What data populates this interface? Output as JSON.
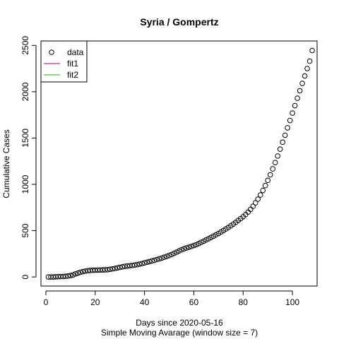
{
  "chart_data": {
    "type": "scatter",
    "title": "Syria / Gompertz",
    "xlabel": "Days since 2020-05-16",
    "xlabel2": "Simple Moving Avarage (window size = 7)",
    "ylabel": "Cumulative Cases",
    "xlim": [
      -2,
      110
    ],
    "ylim": [
      -98,
      2548
    ],
    "x_ticks": [
      0,
      20,
      40,
      60,
      80,
      100
    ],
    "y_ticks": [
      0,
      500,
      1000,
      1500,
      2000,
      2500
    ],
    "grid": false,
    "legend_position": "top-left",
    "legend": [
      {
        "label": "data",
        "kind": "circle",
        "color": "#000000"
      },
      {
        "label": "fit1",
        "kind": "line",
        "color": "#DF536B"
      },
      {
        "label": "fit2",
        "kind": "line",
        "color": "#61D04F"
      }
    ],
    "series": [
      {
        "name": "data",
        "marker": "open-circle",
        "color": "#000000",
        "x": [
          1,
          2,
          3,
          4,
          5,
          6,
          7,
          8,
          9,
          10,
          11,
          12,
          13,
          14,
          15,
          16,
          17,
          18,
          19,
          20,
          21,
          22,
          23,
          24,
          25,
          26,
          27,
          28,
          29,
          30,
          31,
          32,
          33,
          34,
          35,
          36,
          37,
          38,
          39,
          40,
          41,
          42,
          43,
          44,
          45,
          46,
          47,
          48,
          49,
          50,
          51,
          52,
          53,
          54,
          55,
          56,
          57,
          58,
          59,
          60,
          61,
          62,
          63,
          64,
          65,
          66,
          67,
          68,
          69,
          70,
          71,
          72,
          73,
          74,
          75,
          76,
          77,
          78,
          79,
          80,
          81,
          82,
          83,
          84,
          85,
          86,
          87,
          88,
          89,
          90,
          91,
          92,
          93,
          94,
          95,
          96,
          97,
          98,
          99,
          100,
          101,
          102,
          103,
          104,
          105,
          106,
          107,
          108
        ],
        "y": [
          0,
          0,
          0,
          2,
          3,
          4,
          5,
          7,
          10,
          15,
          22,
          33,
          42,
          50,
          58,
          63,
          67,
          70,
          72,
          73,
          74,
          75,
          76,
          77,
          79,
          83,
          87,
          92,
          98,
          104,
          109,
          114,
          118,
          121,
          124,
          128,
          133,
          139,
          145,
          152,
          159,
          166,
          173,
          180,
          188,
          196,
          204,
          213,
          222,
          232,
          243,
          255,
          268,
          281,
          293,
          304,
          313,
          321,
          330,
          339,
          349,
          361,
          374,
          387,
          400,
          413,
          427,
          441,
          455,
          470,
          486,
          502,
          518,
          535,
          553,
          571,
          590,
          610,
          630,
          651,
          674,
          700,
          730,
          763,
          800,
          840,
          885,
          934,
          987,
          1043,
          1103,
          1167,
          1235,
          1306,
          1380,
          1455,
          1530,
          1610,
          1690,
          1770,
          1850,
          1930,
          2010,
          2090,
          2170,
          2250,
          2330,
          2445
        ]
      }
    ]
  }
}
